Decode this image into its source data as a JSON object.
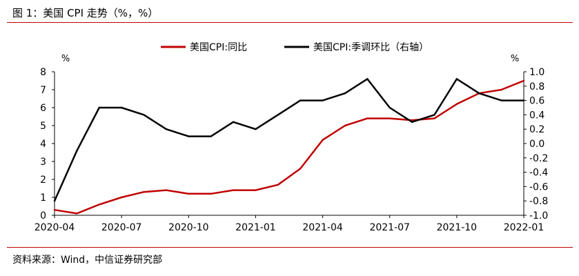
{
  "figure": {
    "title": "图 1：美国 CPI 走势（%，%）",
    "source": "资料来源：Wind，中信证券研究部"
  },
  "chart_data": {
    "type": "line",
    "title": "",
    "categories": [
      "2020-04",
      "2020-05",
      "2020-06",
      "2020-07",
      "2020-08",
      "2020-09",
      "2020-10",
      "2020-11",
      "2020-12",
      "2021-01",
      "2021-02",
      "2021-03",
      "2021-04",
      "2021-05",
      "2021-06",
      "2021-07",
      "2021-08",
      "2021-09",
      "2021-10",
      "2021-11",
      "2021-12",
      "2022-01"
    ],
    "x_tick_labels": [
      "2020-04",
      "2020-07",
      "2020-10",
      "2021-01",
      "2021-04",
      "2021-07",
      "2021-10",
      "2022-01"
    ],
    "x_tick_indices": [
      0,
      3,
      6,
      9,
      12,
      15,
      18,
      21
    ],
    "y_left": {
      "unit_label": "%",
      "ylim": [
        0,
        8
      ],
      "ticks": [
        "0",
        "1",
        "2",
        "3",
        "4",
        "5",
        "6",
        "7",
        "8"
      ]
    },
    "y_right": {
      "unit_label": "%",
      "ylim": [
        -1.0,
        1.0
      ],
      "ticks": [
        "-1.0",
        "-0.8",
        "-0.6",
        "-0.4",
        "-0.2",
        "0.0",
        "0.2",
        "0.4",
        "0.6",
        "0.8",
        "1.0"
      ]
    },
    "legend_position": "top",
    "series": [
      {
        "name": "美国CPI:同比",
        "axis": "left",
        "color": "#c00000",
        "values": [
          0.3,
          0.1,
          0.6,
          1.0,
          1.3,
          1.4,
          1.2,
          1.2,
          1.4,
          1.4,
          1.7,
          2.6,
          4.2,
          5.0,
          5.4,
          5.4,
          5.3,
          5.4,
          6.2,
          6.8,
          7.0,
          7.5
        ]
      },
      {
        "name": "美国CPI:季调环比（右轴）",
        "axis": "right",
        "color": "#000000",
        "values": [
          -0.8,
          -0.1,
          0.5,
          0.5,
          0.4,
          0.2,
          0.1,
          0.1,
          0.3,
          0.2,
          0.4,
          0.6,
          0.6,
          0.7,
          0.9,
          0.5,
          0.3,
          0.4,
          0.9,
          0.7,
          0.6,
          0.6
        ]
      }
    ]
  }
}
